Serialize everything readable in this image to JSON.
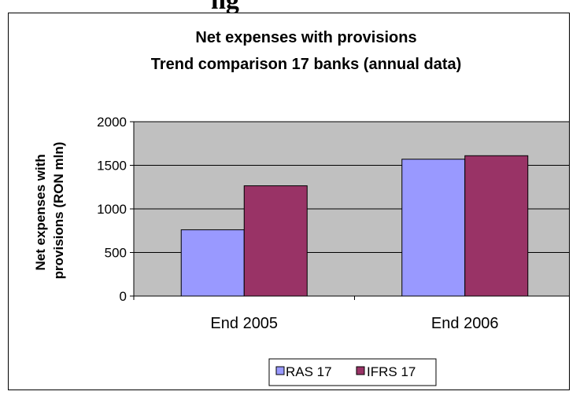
{
  "header_fragment": "ng",
  "chart_data": {
    "type": "bar",
    "title": "Net expenses with provisions",
    "subtitle": "Trend comparison 17 banks (annual data)",
    "ylabel_lines": [
      "Net expenses with",
      "provisions (RON mln)"
    ],
    "categories": [
      "End 2005",
      "End 2006"
    ],
    "series": [
      {
        "name": "RAS 17",
        "values": [
          760,
          1570
        ],
        "color": "#9999ff"
      },
      {
        "name": "IFRS 17",
        "values": [
          1265,
          1610
        ],
        "color": "#993366"
      }
    ],
    "ylim": [
      0,
      2000
    ],
    "yticks": [
      0,
      500,
      1000,
      1500,
      2000
    ],
    "grid": true,
    "plot_background": "#c0c0c0",
    "legend_position": "bottom"
  }
}
